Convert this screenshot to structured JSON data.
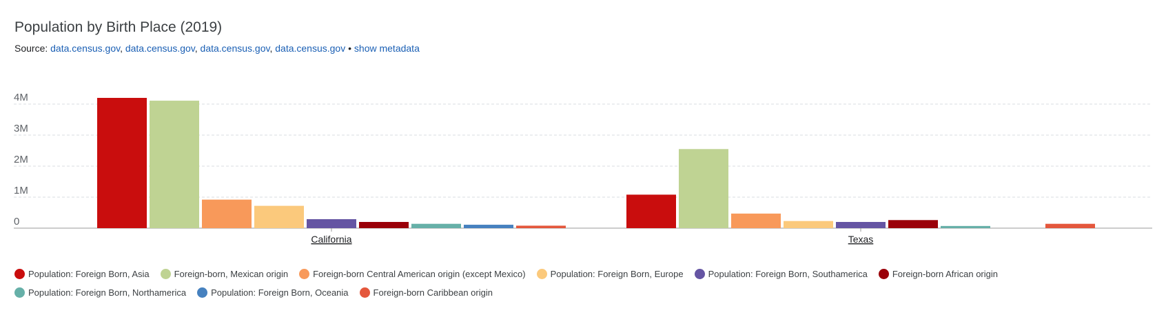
{
  "title": "Population by Birth Place (2019)",
  "source": {
    "prefix": "Source:",
    "links": [
      "data.census.gov",
      "data.census.gov",
      "data.census.gov",
      "data.census.gov"
    ],
    "separator": "•",
    "metadata_link": "show metadata"
  },
  "chart_data": {
    "type": "bar",
    "title": "Population by Birth Place (2019)",
    "categories": [
      "California",
      "Texas"
    ],
    "yticks": [
      "0",
      "1M",
      "2M",
      "3M",
      "4M"
    ],
    "ylim": [
      0,
      4200000
    ],
    "grid": true,
    "legend_position": "bottom",
    "series": [
      {
        "name": "Population: Foreign Born, Asia",
        "color": "#c90d0d",
        "values": [
          4200000,
          1080000
        ]
      },
      {
        "name": "Foreign-born, Mexican origin",
        "color": "#bfd393",
        "values": [
          4110000,
          2550000
        ]
      },
      {
        "name": "Foreign-born Central American origin (except Mexico)",
        "color": "#f8995a",
        "values": [
          920000,
          470000
        ]
      },
      {
        "name": "Population: Foreign Born, Europe",
        "color": "#fbc97c",
        "values": [
          720000,
          230000
        ]
      },
      {
        "name": "Population: Foreign Born, Southamerica",
        "color": "#6555a3",
        "values": [
          290000,
          200000
        ]
      },
      {
        "name": "Foreign-born African origin",
        "color": "#9a0009",
        "values": [
          200000,
          260000
        ]
      },
      {
        "name": "Population: Foreign Born, Northamerica",
        "color": "#66b0a8",
        "values": [
          140000,
          70000
        ]
      },
      {
        "name": "Population: Foreign Born, Oceania",
        "color": "#4681bf",
        "values": [
          110000,
          0
        ]
      },
      {
        "name": "Foreign-born Caribbean origin",
        "color": "#e4573c",
        "values": [
          80000,
          140000
        ]
      }
    ]
  }
}
